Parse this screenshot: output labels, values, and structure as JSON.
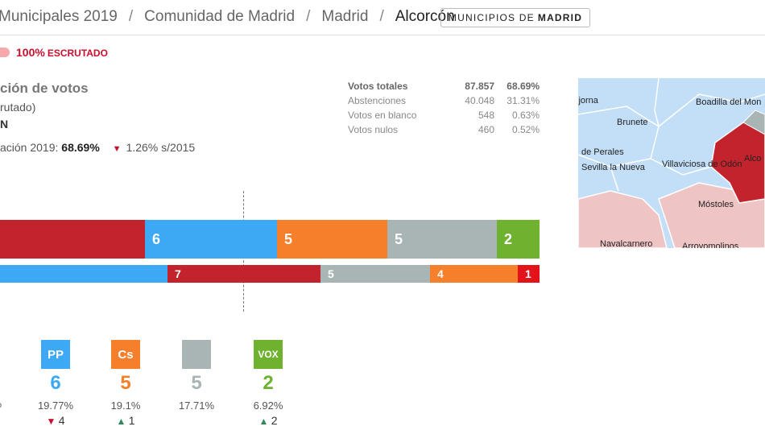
{
  "breadcrumb": {
    "items": [
      "Municipales 2019",
      "Comunidad de Madrid",
      "Madrid",
      "Alcorcón"
    ],
    "separator": "/"
  },
  "municipios_button": {
    "prefix": "MUNICIPIOS DE",
    "bold": "MADRID"
  },
  "scrutiny": {
    "percent": "100%",
    "label": "ESCRUTADO"
  },
  "votes_section": {
    "title": "ción de votos",
    "subtitle": "rutado)",
    "winner": "N",
    "participation_label": "ación 2019:",
    "participation_value": "68.69%",
    "participation_delta": "1.26%",
    "participation_delta_suffix": "s/2015"
  },
  "stats": [
    {
      "label": "Votos totales",
      "value": "87.857",
      "percent": "68.69%"
    },
    {
      "label": "Abstenciones",
      "value": "40.048",
      "percent": "31.31%"
    },
    {
      "label": "Votos en blanco",
      "value": "548",
      "percent": "0.63%"
    },
    {
      "label": "Votos nulos",
      "value": "460",
      "percent": "0.52%"
    }
  ],
  "map_labels": {
    "l1": "ijorna",
    "l2": "Boadilla del Mon",
    "l3": "Brunete",
    "l4": "de Perales",
    "l5": "Sevilla la Nueva",
    "l6": "Villaviciosa de Odón",
    "l7": "Alco",
    "l8": "Móstoles",
    "l9": "Navalcarnero",
    "l10": "Arroyomolinos"
  },
  "bar_2019": [
    {
      "party": "psoe",
      "seats": "",
      "fraction": 0.19,
      "color": "#c3232c"
    },
    {
      "party": "pp",
      "seats": "6",
      "fraction": 0.164,
      "color": "#3da9f5"
    },
    {
      "party": "cs",
      "seats": "5",
      "fraction": 0.137,
      "color": "#f57f2b"
    },
    {
      "party": "gris",
      "seats": "5",
      "fraction": 0.137,
      "color": "#a9b5b4"
    },
    {
      "party": "vox",
      "seats": "2",
      "fraction": 0.055,
      "color": "#6fb22f"
    }
  ],
  "bar_2015": [
    {
      "party": "pp",
      "seats": "",
      "fraction": 0.21,
      "color": "#3da9f5"
    },
    {
      "party": "psoe",
      "seats": "7",
      "fraction": 0.19,
      "color": "#c3232c"
    },
    {
      "party": "gris",
      "seats": "5",
      "fraction": 0.137,
      "color": "#a9b5b4"
    },
    {
      "party": "cs",
      "seats": "4",
      "fraction": 0.109,
      "color": "#f57f2b"
    },
    {
      "party": "other",
      "seats": "1",
      "fraction": 0.027,
      "color": "#e3131b"
    }
  ],
  "parties": [
    {
      "name": "pp",
      "logo": "PP",
      "color": "#3da9f5",
      "seats": "6",
      "percent": "19.77%",
      "change": "4",
      "direction": "down"
    },
    {
      "name": "cs",
      "logo": "Cs",
      "color": "#f57f2b",
      "seats": "5",
      "percent": "19.1%",
      "change": "1",
      "direction": "up"
    },
    {
      "name": "gris",
      "logo": "",
      "color": "#a9b5b4",
      "seats": "5",
      "percent": "17.71%",
      "change": "",
      "direction": "none"
    },
    {
      "name": "vox",
      "logo": "VOX",
      "color": "#6fb22f",
      "seats": "2",
      "percent": "6.92%",
      "change": "2",
      "direction": "up"
    }
  ],
  "cut_percent": "%"
}
